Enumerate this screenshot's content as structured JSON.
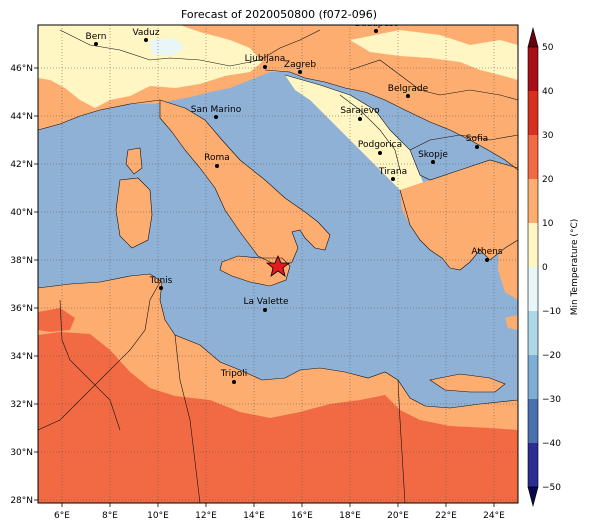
{
  "title": "Forecast of 2020050800 (f072-096)",
  "colorbar": {
    "label": "Min Temperature (°C)",
    "ticks": [
      "50",
      "40",
      "30",
      "20",
      "10",
      "0",
      "−10",
      "−20",
      "−30",
      "−40",
      "−50"
    ],
    "bins": [
      {
        "from": 40,
        "to": 50,
        "color": "#a50f15"
      },
      {
        "from": 30,
        "to": 40,
        "color": "#d7301f"
      },
      {
        "from": 20,
        "to": 30,
        "color": "#f16a43"
      },
      {
        "from": 10,
        "to": 20,
        "color": "#fdad6f"
      },
      {
        "from": 0,
        "to": 10,
        "color": "#fff6c4"
      },
      {
        "from": -10,
        "to": 0,
        "color": "#e9f6f8"
      },
      {
        "from": -20,
        "to": -10,
        "color": "#aed7e7"
      },
      {
        "from": -30,
        "to": -20,
        "color": "#7eaed3"
      },
      {
        "from": -40,
        "to": -30,
        "color": "#4b70b0"
      },
      {
        "from": -50,
        "to": -40,
        "color": "#2c2c93"
      }
    ],
    "extend_top_color": "#67000d",
    "extend_bottom_color": "#08084a"
  },
  "map": {
    "sea_color": "#8fb1d6",
    "lon_ticks": [
      "6°E",
      "8°E",
      "10°E",
      "12°E",
      "14°E",
      "16°E",
      "18°E",
      "20°E",
      "22°E",
      "24°E"
    ],
    "lat_ticks": [
      "46°N",
      "44°N",
      "42°N",
      "40°N",
      "38°N",
      "36°N",
      "34°N",
      "32°N",
      "30°N",
      "28°N"
    ],
    "cities": [
      "Bern",
      "Vaduz",
      "Budapest",
      "Ljubljana",
      "Zagreb",
      "Belgrade",
      "San Marino",
      "Sarajevo",
      "Sofia",
      "Podgorica",
      "Roma",
      "Skopje",
      "Tirana",
      "Athens",
      "Tunis",
      "La Valette",
      "Tripoli"
    ],
    "marker": "red star near Sicily"
  }
}
